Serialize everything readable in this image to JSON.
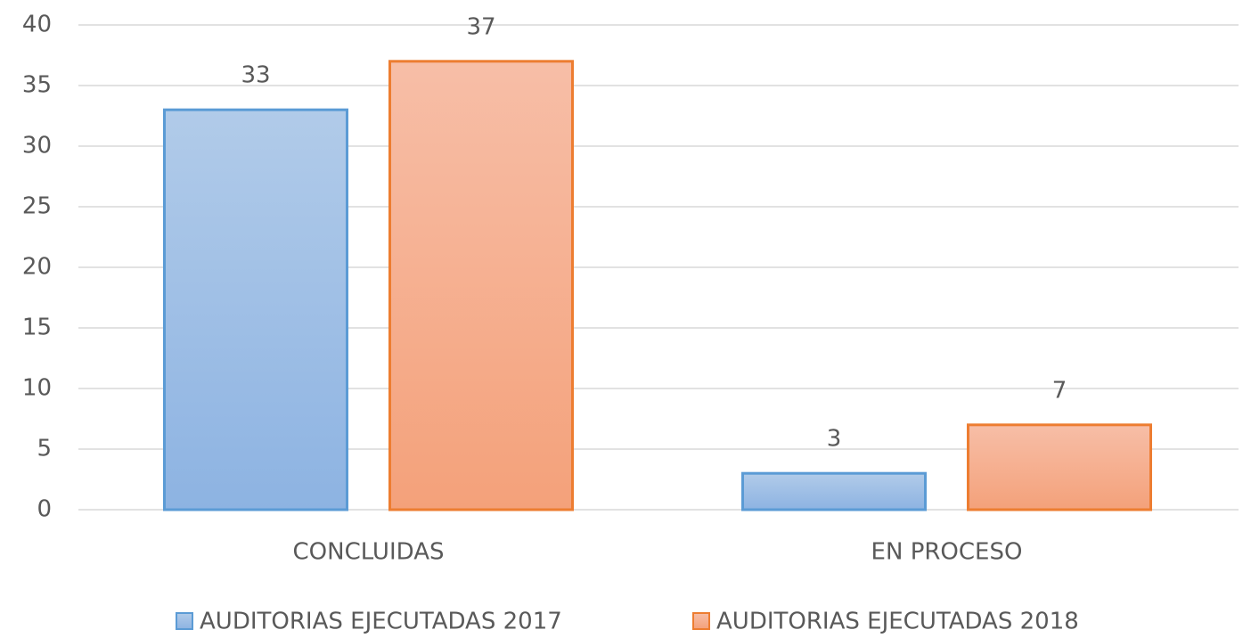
{
  "chart_data": {
    "type": "bar",
    "categories": [
      "CONCLUIDAS",
      "EN PROCESO"
    ],
    "series": [
      {
        "name": "AUDITORIAS EJECUTADAS 2017",
        "color": "#5b9bd5",
        "values": [
          33,
          3
        ]
      },
      {
        "name": "AUDITORIAS EJECUTADAS 2018",
        "color": "#ed7d31",
        "values": [
          37,
          7
        ]
      }
    ],
    "ylim": [
      0,
      40
    ],
    "yticks": [
      0,
      5,
      10,
      15,
      20,
      25,
      30,
      35,
      40
    ],
    "grid": true,
    "legend": "bottom"
  }
}
